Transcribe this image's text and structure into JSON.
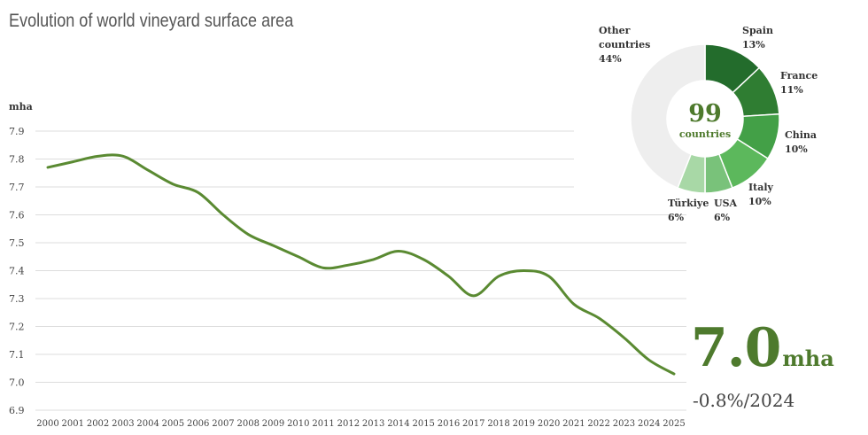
{
  "title": "Evolution of world vineyard surface area",
  "headline": {
    "value": "7.0",
    "unit": "mha",
    "change": "-0.8%/2024"
  },
  "colors": {
    "line": "#5a8a32",
    "grid": "#dddddd",
    "other": "#eeeeee"
  },
  "chart_data": [
    {
      "type": "line",
      "ylabel": "mha",
      "xlabel": "",
      "ylim": [
        6.9,
        7.9
      ],
      "y_ticks": [
        "6.9",
        "7.0",
        "7.1",
        "7.2",
        "7.3",
        "7.4",
        "7.5",
        "7.6",
        "7.7",
        "7.8",
        "7.9"
      ],
      "x": [
        "2000",
        "2001",
        "2002",
        "2003",
        "2004",
        "2005",
        "2006",
        "2007",
        "2008",
        "2009",
        "2010",
        "2011",
        "2012",
        "2013",
        "2014",
        "2015",
        "2016",
        "2017",
        "2018",
        "2019",
        "2020",
        "2021",
        "2022",
        "2023",
        "2024",
        "2025"
      ],
      "values": [
        7.77,
        7.79,
        7.81,
        7.81,
        7.76,
        7.71,
        7.68,
        7.6,
        7.53,
        7.49,
        7.45,
        7.41,
        7.42,
        7.44,
        7.47,
        7.44,
        7.38,
        7.31,
        7.38,
        7.4,
        7.38,
        7.28,
        7.23,
        7.16,
        7.08,
        7.03
      ],
      "grid": true
    },
    {
      "type": "pie",
      "center_value": "99",
      "center_label": "countries",
      "slices": [
        {
          "label": "Spain",
          "value": 13,
          "display": "13%",
          "color": "#236c2c"
        },
        {
          "label": "France",
          "value": 11,
          "display": "11%",
          "color": "#2f7d32"
        },
        {
          "label": "China",
          "value": 10,
          "display": "10%",
          "color": "#43a047"
        },
        {
          "label": "Italy",
          "value": 10,
          "display": "10%",
          "color": "#5cb85c"
        },
        {
          "label": "USA",
          "value": 6,
          "display": "6%",
          "color": "#79c27a"
        },
        {
          "label": "Türkiye",
          "value": 6,
          "display": "6%",
          "color": "#a8d8a6"
        },
        {
          "label": "Other countries",
          "value": 44,
          "display": "44%",
          "color": "#eeeeee"
        }
      ]
    }
  ]
}
